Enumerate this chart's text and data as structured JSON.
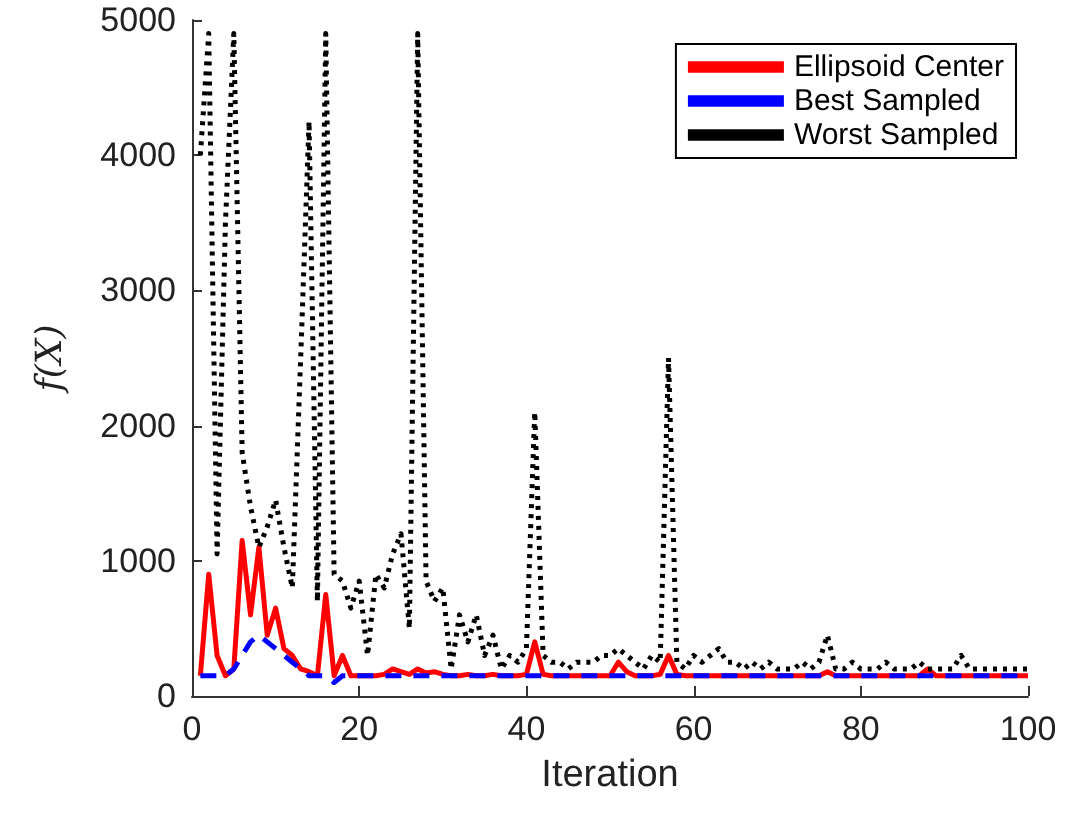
{
  "chart_data": {
    "type": "line",
    "xlabel": "Iteration",
    "ylabel": "f(X)",
    "x": [
      1,
      2,
      3,
      4,
      5,
      6,
      7,
      8,
      9,
      10,
      11,
      12,
      13,
      14,
      15,
      16,
      17,
      18,
      19,
      20,
      21,
      22,
      23,
      24,
      25,
      26,
      27,
      28,
      29,
      30,
      31,
      32,
      33,
      34,
      35,
      36,
      37,
      38,
      39,
      40,
      41,
      42,
      43,
      44,
      45,
      46,
      47,
      48,
      49,
      50,
      51,
      52,
      53,
      54,
      55,
      56,
      57,
      58,
      59,
      60,
      61,
      62,
      63,
      64,
      65,
      66,
      67,
      68,
      69,
      70,
      71,
      72,
      73,
      74,
      75,
      76,
      77,
      78,
      79,
      80,
      81,
      82,
      83,
      84,
      85,
      86,
      87,
      88,
      89,
      90,
      91,
      92,
      93,
      94,
      95,
      96,
      97,
      98,
      99,
      100
    ],
    "xlim": [
      0,
      100
    ],
    "xticks": [
      0,
      20,
      40,
      60,
      80,
      100
    ],
    "ylim": [
      0,
      5000
    ],
    "yticks": [
      0,
      1000,
      2000,
      3000,
      4000,
      5000
    ],
    "legend": "top right",
    "series": [
      {
        "name": "Ellipsoid Center",
        "color": "#ff0000",
        "line_style": "solid",
        "values": [
          150,
          900,
          300,
          150,
          200,
          1150,
          600,
          1100,
          450,
          650,
          350,
          300,
          200,
          180,
          150,
          750,
          150,
          300,
          150,
          150,
          150,
          150,
          160,
          200,
          180,
          160,
          200,
          170,
          180,
          160,
          150,
          150,
          160,
          150,
          150,
          160,
          150,
          150,
          150,
          160,
          400,
          160,
          150,
          150,
          150,
          150,
          150,
          150,
          150,
          150,
          250,
          180,
          150,
          150,
          150,
          160,
          300,
          160,
          150,
          150,
          150,
          150,
          150,
          150,
          150,
          150,
          150,
          150,
          150,
          150,
          150,
          150,
          150,
          150,
          150,
          180,
          150,
          150,
          150,
          150,
          150,
          150,
          150,
          150,
          150,
          150,
          150,
          200,
          150,
          150,
          150,
          150,
          150,
          150,
          150,
          150,
          150,
          150,
          150,
          150
        ]
      },
      {
        "name": "Best Sampled",
        "color": "#0000ff",
        "line_style": "dashed",
        "values": [
          150,
          150,
          150,
          150,
          200,
          300,
          400,
          450,
          400,
          350,
          300,
          250,
          200,
          150,
          150,
          150,
          100,
          150,
          150,
          150,
          150,
          150,
          150,
          150,
          150,
          150,
          150,
          150,
          150,
          150,
          150,
          150,
          150,
          150,
          150,
          150,
          150,
          150,
          150,
          150,
          150,
          150,
          150,
          150,
          150,
          150,
          150,
          150,
          150,
          150,
          150,
          150,
          150,
          150,
          150,
          150,
          150,
          150,
          150,
          150,
          150,
          150,
          150,
          150,
          150,
          150,
          150,
          150,
          150,
          150,
          150,
          150,
          150,
          150,
          150,
          150,
          150,
          150,
          150,
          150,
          150,
          150,
          150,
          150,
          150,
          150,
          150,
          150,
          150,
          150,
          150,
          150,
          150,
          150,
          150,
          150,
          150,
          150,
          150,
          150
        ]
      },
      {
        "name": "Worst Sampled",
        "color": "#000000",
        "line_style": "dotted",
        "values": [
          4000,
          4900,
          1050,
          3500,
          4900,
          1800,
          1400,
          1100,
          1250,
          1450,
          1100,
          800,
          2500,
          4250,
          700,
          4900,
          900,
          850,
          650,
          850,
          300,
          900,
          800,
          1050,
          1200,
          500,
          4900,
          850,
          700,
          800,
          200,
          600,
          400,
          600,
          300,
          450,
          200,
          300,
          250,
          350,
          2100,
          300,
          250,
          250,
          200,
          250,
          250,
          250,
          300,
          300,
          350,
          300,
          250,
          200,
          300,
          250,
          2500,
          250,
          200,
          300,
          250,
          300,
          350,
          250,
          250,
          200,
          250,
          200,
          250,
          200,
          200,
          200,
          250,
          200,
          250,
          450,
          200,
          200,
          250,
          200,
          200,
          200,
          250,
          200,
          200,
          200,
          250,
          200,
          200,
          200,
          200,
          300,
          200,
          200,
          200,
          200,
          200,
          200,
          200,
          200
        ]
      }
    ]
  }
}
